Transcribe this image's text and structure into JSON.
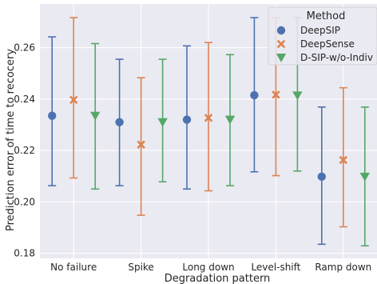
{
  "chart_data": {
    "type": "scatter",
    "subtype": "point-with-error-bars",
    "xlabel": "Degradation pattern",
    "ylabel": "Prediction error of time to recocery",
    "categories": [
      "No failure",
      "Spike",
      "Long down",
      "Level-shift",
      "Ramp down"
    ],
    "ylim": [
      0.178,
      0.277
    ],
    "yticks": [
      "0.18",
      "0.20",
      "0.22",
      "0.24",
      "0.26"
    ],
    "grid": true,
    "legend": {
      "title": "Method",
      "placement": "top-right"
    },
    "series": [
      {
        "name": "DeepSIP",
        "marker": "circle",
        "color": "#4c72b0",
        "values": [
          0.2335,
          0.231,
          0.232,
          0.2415,
          0.2098
        ],
        "lower": [
          0.2063,
          0.2063,
          0.205,
          0.2117,
          0.1835
        ],
        "upper": [
          0.2642,
          0.2555,
          0.2607,
          0.2717,
          0.2369
        ]
      },
      {
        "name": "DeepSense",
        "marker": "x",
        "color": "#dd8452",
        "values": [
          0.2397,
          0.2223,
          0.2327,
          0.2417,
          0.2163
        ],
        "lower": [
          0.2093,
          0.1948,
          0.2043,
          0.2102,
          0.1903
        ],
        "upper": [
          0.2717,
          0.2483,
          0.262,
          0.2717,
          0.2444
        ]
      },
      {
        "name": "D-SIP-w/o-Indiv",
        "marker": "triangle-down",
        "color": "#55a868",
        "values": [
          0.2335,
          0.231,
          0.232,
          0.2414,
          0.2098
        ],
        "lower": [
          0.205,
          0.2078,
          0.2063,
          0.212,
          0.1829
        ],
        "upper": [
          0.2616,
          0.2555,
          0.2573,
          0.2717,
          0.2369
        ]
      }
    ]
  }
}
